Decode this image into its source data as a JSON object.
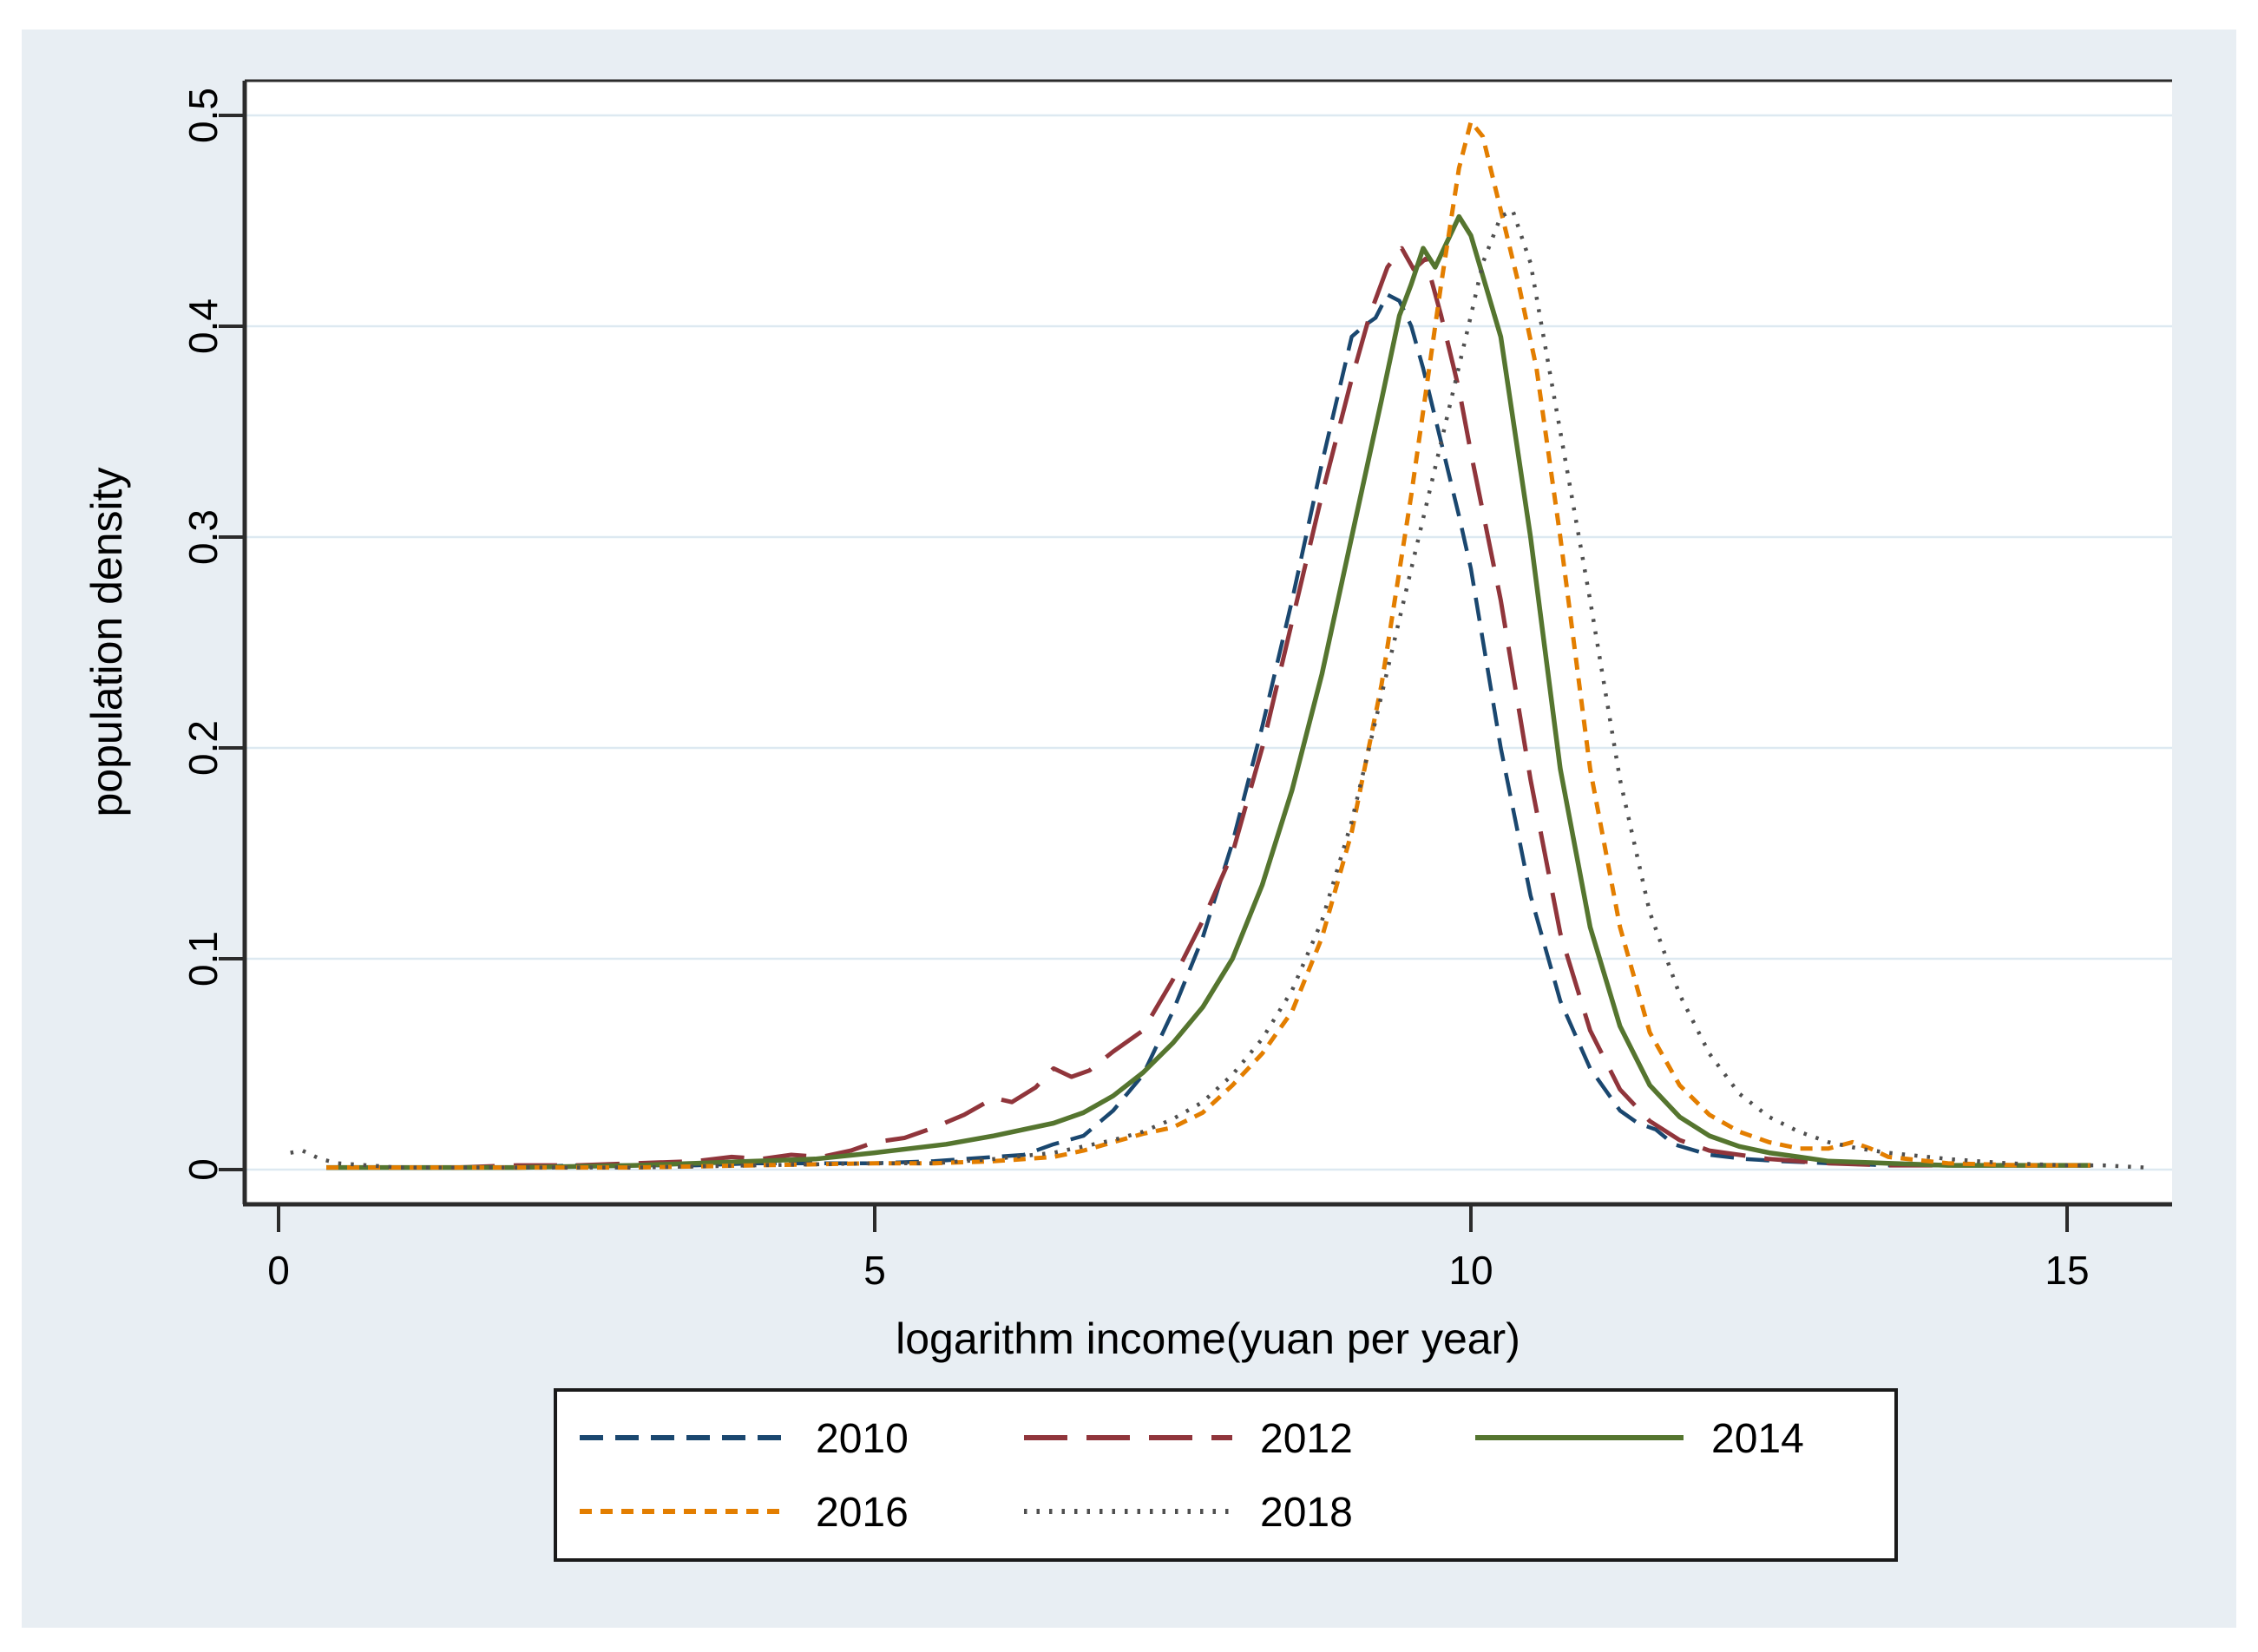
{
  "figure": {
    "background_color": "#e8eef3",
    "plot_background_color": "#ffffff",
    "gridline_color": "#dde9f1",
    "axis_color": "#2b2b2b",
    "legend_border_color": "#1a1a1a",
    "legend_background_color": "#ffffff"
  },
  "chart_data": {
    "type": "line",
    "title": "",
    "xlabel": "logarithm income(yuan per year)",
    "ylabel": "population density",
    "xlim": [
      -0.3,
      15.9
    ],
    "ylim": [
      -0.017,
      0.517
    ],
    "xticks": [
      0,
      5,
      10,
      15
    ],
    "xtick_labels": [
      "0",
      "5",
      "10",
      "15"
    ],
    "yticks": [
      0,
      0.1,
      0.2,
      0.3,
      0.4,
      0.5
    ],
    "ytick_labels": [
      "0",
      "0.1",
      "0.2",
      "0.3",
      "0.4",
      "0.5"
    ],
    "grid": "horizontal",
    "legend_position": "below-center",
    "series": [
      {
        "name": "2010",
        "color": "#1a476f",
        "line_style": "dash",
        "dash": "27 14",
        "width": 4.5,
        "points": [
          [
            0.4,
            0.001
          ],
          [
            1,
            0.001
          ],
          [
            2,
            0.001
          ],
          [
            2.5,
            0.002
          ],
          [
            3,
            0.002
          ],
          [
            3.5,
            0.002
          ],
          [
            4,
            0.003
          ],
          [
            4.5,
            0.003
          ],
          [
            5,
            0.003
          ],
          [
            5.5,
            0.004
          ],
          [
            6,
            0.006
          ],
          [
            6.25,
            0.007
          ],
          [
            6.5,
            0.012
          ],
          [
            6.75,
            0.016
          ],
          [
            7,
            0.028
          ],
          [
            7.25,
            0.045
          ],
          [
            7.5,
            0.075
          ],
          [
            7.75,
            0.11
          ],
          [
            8,
            0.155
          ],
          [
            8.25,
            0.21
          ],
          [
            8.5,
            0.27
          ],
          [
            8.75,
            0.335
          ],
          [
            9,
            0.395
          ],
          [
            9.1,
            0.4
          ],
          [
            9.2,
            0.404
          ],
          [
            9.3,
            0.415
          ],
          [
            9.4,
            0.412
          ],
          [
            9.5,
            0.4
          ],
          [
            9.6,
            0.38
          ],
          [
            9.75,
            0.345
          ],
          [
            9.9,
            0.31
          ],
          [
            10,
            0.285
          ],
          [
            10.25,
            0.2
          ],
          [
            10.5,
            0.13
          ],
          [
            10.75,
            0.08
          ],
          [
            11,
            0.048
          ],
          [
            11.25,
            0.028
          ],
          [
            11.4,
            0.022
          ],
          [
            11.55,
            0.019
          ],
          [
            11.7,
            0.012
          ],
          [
            12,
            0.007
          ],
          [
            12.3,
            0.005
          ],
          [
            12.6,
            0.004
          ],
          [
            13,
            0.003
          ],
          [
            13.5,
            0.002
          ],
          [
            14,
            0.002
          ],
          [
            14.6,
            0.002
          ],
          [
            15.2,
            0.002
          ]
        ]
      },
      {
        "name": "2012",
        "color": "#90353b",
        "line_style": "long-dash",
        "dash": "50 22",
        "width": 5,
        "points": [
          [
            0.4,
            0.001
          ],
          [
            1,
            0.001
          ],
          [
            1.5,
            0.001
          ],
          [
            2,
            0.002
          ],
          [
            2.5,
            0.002
          ],
          [
            3,
            0.003
          ],
          [
            3.5,
            0.004
          ],
          [
            3.8,
            0.006
          ],
          [
            4.05,
            0.005
          ],
          [
            4.3,
            0.007
          ],
          [
            4.55,
            0.006
          ],
          [
            4.8,
            0.009
          ],
          [
            5,
            0.013
          ],
          [
            5.25,
            0.015
          ],
          [
            5.5,
            0.02
          ],
          [
            5.75,
            0.026
          ],
          [
            6,
            0.034
          ],
          [
            6.15,
            0.032
          ],
          [
            6.35,
            0.039
          ],
          [
            6.5,
            0.048
          ],
          [
            6.65,
            0.044
          ],
          [
            6.8,
            0.047
          ],
          [
            7,
            0.056
          ],
          [
            7.25,
            0.066
          ],
          [
            7.5,
            0.09
          ],
          [
            7.75,
            0.118
          ],
          [
            8,
            0.15
          ],
          [
            8.25,
            0.2
          ],
          [
            8.5,
            0.26
          ],
          [
            8.75,
            0.32
          ],
          [
            9,
            0.375
          ],
          [
            9.15,
            0.405
          ],
          [
            9.3,
            0.428
          ],
          [
            9.42,
            0.437
          ],
          [
            9.52,
            0.427
          ],
          [
            9.62,
            0.432
          ],
          [
            9.75,
            0.405
          ],
          [
            9.9,
            0.37
          ],
          [
            10,
            0.34
          ],
          [
            10.25,
            0.27
          ],
          [
            10.5,
            0.185
          ],
          [
            10.75,
            0.112
          ],
          [
            11,
            0.066
          ],
          [
            11.25,
            0.038
          ],
          [
            11.5,
            0.023
          ],
          [
            11.75,
            0.014
          ],
          [
            12,
            0.009
          ],
          [
            12.5,
            0.005
          ],
          [
            13,
            0.003
          ],
          [
            13.5,
            0.002
          ],
          [
            14,
            0.002
          ],
          [
            14.6,
            0.002
          ],
          [
            15.2,
            0.002
          ]
        ]
      },
      {
        "name": "2014",
        "color": "#55752f",
        "line_style": "solid",
        "dash": "",
        "width": 5.5,
        "points": [
          [
            0.4,
            0.001
          ],
          [
            1,
            0.001
          ],
          [
            2,
            0.001
          ],
          [
            3,
            0.002
          ],
          [
            3.5,
            0.003
          ],
          [
            4,
            0.004
          ],
          [
            4.5,
            0.005
          ],
          [
            5,
            0.008
          ],
          [
            5.3,
            0.01
          ],
          [
            5.6,
            0.012
          ],
          [
            6,
            0.016
          ],
          [
            6.5,
            0.022
          ],
          [
            6.75,
            0.027
          ],
          [
            7,
            0.035
          ],
          [
            7.25,
            0.046
          ],
          [
            7.5,
            0.06
          ],
          [
            7.75,
            0.077
          ],
          [
            8,
            0.1
          ],
          [
            8.25,
            0.135
          ],
          [
            8.5,
            0.18
          ],
          [
            8.75,
            0.235
          ],
          [
            9,
            0.3
          ],
          [
            9.25,
            0.365
          ],
          [
            9.4,
            0.405
          ],
          [
            9.5,
            0.42
          ],
          [
            9.6,
            0.437
          ],
          [
            9.7,
            0.428
          ],
          [
            9.8,
            0.44
          ],
          [
            9.9,
            0.452
          ],
          [
            10,
            0.443
          ],
          [
            10.25,
            0.395
          ],
          [
            10.5,
            0.3
          ],
          [
            10.75,
            0.19
          ],
          [
            11,
            0.115
          ],
          [
            11.25,
            0.068
          ],
          [
            11.5,
            0.04
          ],
          [
            11.75,
            0.025
          ],
          [
            12,
            0.016
          ],
          [
            12.25,
            0.011
          ],
          [
            12.5,
            0.008
          ],
          [
            12.75,
            0.006
          ],
          [
            13,
            0.004
          ],
          [
            13.5,
            0.003
          ],
          [
            14,
            0.002
          ],
          [
            14.6,
            0.002
          ],
          [
            15.2,
            0.002
          ]
        ]
      },
      {
        "name": "2016",
        "color": "#e37e00",
        "line_style": "short-dash",
        "dash": "14 10",
        "width": 5,
        "points": [
          [
            0.4,
            0.001
          ],
          [
            1,
            0.001
          ],
          [
            2,
            0.001
          ],
          [
            3,
            0.001
          ],
          [
            4,
            0.002
          ],
          [
            5,
            0.003
          ],
          [
            5.5,
            0.003
          ],
          [
            6,
            0.004
          ],
          [
            6.5,
            0.006
          ],
          [
            6.75,
            0.009
          ],
          [
            7,
            0.013
          ],
          [
            7.25,
            0.017
          ],
          [
            7.5,
            0.02
          ],
          [
            7.75,
            0.027
          ],
          [
            8,
            0.04
          ],
          [
            8.25,
            0.055
          ],
          [
            8.5,
            0.075
          ],
          [
            8.75,
            0.11
          ],
          [
            9,
            0.16
          ],
          [
            9.25,
            0.23
          ],
          [
            9.5,
            0.32
          ],
          [
            9.75,
            0.42
          ],
          [
            9.9,
            0.475
          ],
          [
            10,
            0.497
          ],
          [
            10.1,
            0.49
          ],
          [
            10.25,
            0.455
          ],
          [
            10.4,
            0.42
          ],
          [
            10.55,
            0.38
          ],
          [
            10.75,
            0.3
          ],
          [
            11,
            0.19
          ],
          [
            11.25,
            0.115
          ],
          [
            11.5,
            0.065
          ],
          [
            11.75,
            0.04
          ],
          [
            12,
            0.026
          ],
          [
            12.25,
            0.018
          ],
          [
            12.5,
            0.013
          ],
          [
            12.75,
            0.01
          ],
          [
            13,
            0.01
          ],
          [
            13.2,
            0.013
          ],
          [
            13.35,
            0.01
          ],
          [
            13.5,
            0.006
          ],
          [
            14,
            0.003
          ],
          [
            14.6,
            0.002
          ],
          [
            15.2,
            0.002
          ]
        ]
      },
      {
        "name": "2018",
        "color": "#4f4f4f",
        "line_style": "dot",
        "dash": "3.5 11",
        "width": 4.5,
        "points": [
          [
            0.1,
            0.008
          ],
          [
            0.2,
            0.009
          ],
          [
            0.35,
            0.005
          ],
          [
            0.5,
            0.003
          ],
          [
            0.75,
            0.002
          ],
          [
            1,
            0.001
          ],
          [
            2,
            0.001
          ],
          [
            3,
            0.001
          ],
          [
            4,
            0.002
          ],
          [
            5,
            0.003
          ],
          [
            5.5,
            0.003
          ],
          [
            6,
            0.005
          ],
          [
            6.5,
            0.008
          ],
          [
            7,
            0.014
          ],
          [
            7.25,
            0.018
          ],
          [
            7.5,
            0.024
          ],
          [
            7.75,
            0.032
          ],
          [
            8,
            0.045
          ],
          [
            8.25,
            0.062
          ],
          [
            8.5,
            0.085
          ],
          [
            8.75,
            0.118
          ],
          [
            9,
            0.165
          ],
          [
            9.25,
            0.225
          ],
          [
            9.5,
            0.285
          ],
          [
            9.75,
            0.345
          ],
          [
            10,
            0.405
          ],
          [
            10.1,
            0.43
          ],
          [
            10.25,
            0.452
          ],
          [
            10.35,
            0.455
          ],
          [
            10.5,
            0.43
          ],
          [
            10.75,
            0.35
          ],
          [
            11,
            0.27
          ],
          [
            11.25,
            0.185
          ],
          [
            11.5,
            0.122
          ],
          [
            11.75,
            0.083
          ],
          [
            12,
            0.055
          ],
          [
            12.25,
            0.036
          ],
          [
            12.5,
            0.025
          ],
          [
            12.75,
            0.018
          ],
          [
            13,
            0.013
          ],
          [
            13.25,
            0.01
          ],
          [
            13.5,
            0.008
          ],
          [
            14,
            0.005
          ],
          [
            14.5,
            0.003
          ],
          [
            15,
            0.002
          ],
          [
            15.3,
            0.002
          ],
          [
            15.65,
            0.001
          ]
        ]
      }
    ]
  }
}
